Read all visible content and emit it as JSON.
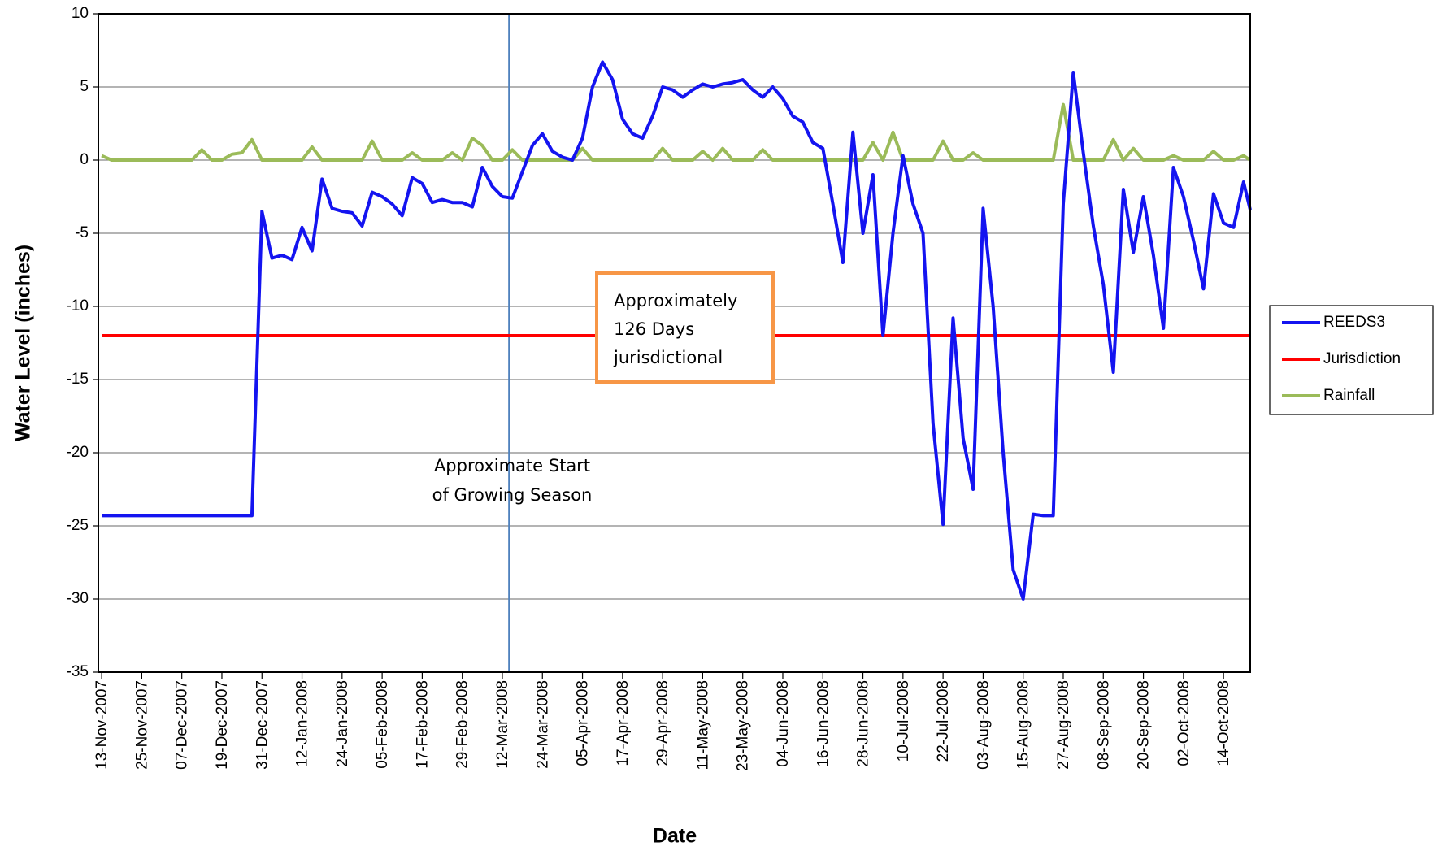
{
  "chart_data": {
    "type": "line",
    "x_label": "Date",
    "y_label": "Water Level (inches)",
    "xlim": [
      "12-Nov-2007",
      "22-Oct-2008"
    ],
    "xticks": [
      "13-Nov-2007",
      "25-Nov-2007",
      "07-Dec-2007",
      "19-Dec-2007",
      "31-Dec-2007",
      "12-Jan-2008",
      "24-Jan-2008",
      "05-Feb-2008",
      "17-Feb-2008",
      "29-Feb-2008",
      "12-Mar-2008",
      "24-Mar-2008",
      "05-Apr-2008",
      "17-Apr-2008",
      "29-Apr-2008",
      "11-May-2008",
      "23-May-2008",
      "04-Jun-2008",
      "16-Jun-2008",
      "28-Jun-2008",
      "10-Jul-2008",
      "22-Jul-2008",
      "03-Aug-2008",
      "15-Aug-2008",
      "27-Aug-2008",
      "08-Sep-2008",
      "20-Sep-2008",
      "02-Oct-2008",
      "14-Oct-2008"
    ],
    "ylim": [
      -35,
      10
    ],
    "yticks": [
      -35,
      -30,
      -25,
      -20,
      -15,
      -10,
      -5,
      0,
      5,
      10
    ],
    "grid": true,
    "legend": "right",
    "x": [
      "13-Nov-2007",
      "16-Nov-2007",
      "19-Nov-2007",
      "22-Nov-2007",
      "25-Nov-2007",
      "28-Nov-2007",
      "01-Dec-2007",
      "04-Dec-2007",
      "07-Dec-2007",
      "10-Dec-2007",
      "13-Dec-2007",
      "16-Dec-2007",
      "19-Dec-2007",
      "22-Dec-2007",
      "25-Dec-2007",
      "28-Dec-2007",
      "31-Dec-2007",
      "03-Jan-2008",
      "06-Jan-2008",
      "09-Jan-2008",
      "12-Jan-2008",
      "15-Jan-2008",
      "18-Jan-2008",
      "21-Jan-2008",
      "24-Jan-2008",
      "27-Jan-2008",
      "30-Jan-2008",
      "02-Feb-2008",
      "05-Feb-2008",
      "08-Feb-2008",
      "11-Feb-2008",
      "14-Feb-2008",
      "17-Feb-2008",
      "20-Feb-2008",
      "23-Feb-2008",
      "26-Feb-2008",
      "29-Feb-2008",
      "03-Mar-2008",
      "06-Mar-2008",
      "09-Mar-2008",
      "12-Mar-2008",
      "15-Mar-2008",
      "18-Mar-2008",
      "21-Mar-2008",
      "24-Mar-2008",
      "27-Mar-2008",
      "30-Mar-2008",
      "02-Apr-2008",
      "05-Apr-2008",
      "08-Apr-2008",
      "11-Apr-2008",
      "14-Apr-2008",
      "17-Apr-2008",
      "20-Apr-2008",
      "23-Apr-2008",
      "26-Apr-2008",
      "29-Apr-2008",
      "02-May-2008",
      "05-May-2008",
      "08-May-2008",
      "11-May-2008",
      "14-May-2008",
      "17-May-2008",
      "20-May-2008",
      "23-May-2008",
      "26-May-2008",
      "29-May-2008",
      "01-Jun-2008",
      "04-Jun-2008",
      "07-Jun-2008",
      "10-Jun-2008",
      "13-Jun-2008",
      "16-Jun-2008",
      "19-Jun-2008",
      "22-Jun-2008",
      "25-Jun-2008",
      "28-Jun-2008",
      "01-Jul-2008",
      "04-Jul-2008",
      "07-Jul-2008",
      "10-Jul-2008",
      "13-Jul-2008",
      "16-Jul-2008",
      "19-Jul-2008",
      "22-Jul-2008",
      "25-Jul-2008",
      "28-Jul-2008",
      "31-Jul-2008",
      "03-Aug-2008",
      "06-Aug-2008",
      "09-Aug-2008",
      "12-Aug-2008",
      "15-Aug-2008",
      "18-Aug-2008",
      "21-Aug-2008",
      "24-Aug-2008",
      "27-Aug-2008",
      "30-Aug-2008",
      "02-Sep-2008",
      "05-Sep-2008",
      "08-Sep-2008",
      "11-Sep-2008",
      "14-Sep-2008",
      "17-Sep-2008",
      "20-Sep-2008",
      "23-Sep-2008",
      "26-Sep-2008",
      "29-Sep-2008",
      "02-Oct-2008",
      "05-Oct-2008",
      "08-Oct-2008",
      "11-Oct-2008",
      "14-Oct-2008",
      "17-Oct-2008",
      "20-Oct-2008",
      "22-Oct-2008"
    ],
    "series": [
      {
        "name": "REEDS3",
        "color": "#1414f0",
        "values": [
          -24.3,
          -24.3,
          -24.3,
          -24.3,
          -24.3,
          -24.3,
          -24.3,
          -24.3,
          -24.3,
          -24.3,
          -24.3,
          -24.3,
          -24.3,
          -24.3,
          -24.3,
          -24.3,
          -3.5,
          -6.7,
          -6.5,
          -6.8,
          -4.6,
          -6.2,
          -1.3,
          -3.3,
          -3.5,
          -3.6,
          -4.5,
          -2.2,
          -2.5,
          -3.0,
          -3.8,
          -1.2,
          -1.6,
          -2.9,
          -2.7,
          -2.9,
          -2.9,
          -3.2,
          -0.5,
          -1.8,
          -2.5,
          -2.6,
          -0.8,
          1.0,
          1.8,
          0.6,
          0.2,
          0.0,
          1.5,
          5.0,
          6.7,
          5.5,
          2.8,
          1.8,
          1.5,
          3.0,
          5.0,
          4.8,
          4.3,
          4.8,
          5.2,
          5.0,
          5.2,
          5.3,
          5.5,
          4.8,
          4.3,
          5.0,
          4.2,
          3.0,
          2.6,
          1.2,
          0.8,
          -3.0,
          -7.0,
          1.9,
          -5.0,
          -1.0,
          -12.0,
          -5.0,
          0.3,
          -3.0,
          -5.0,
          -18.0,
          -24.9,
          -10.8,
          -19.0,
          -22.5,
          -3.3,
          -10.0,
          -20.0,
          -28.0,
          -30.0,
          -24.2,
          -24.3,
          -24.3,
          -3.0,
          6.0,
          0.5,
          -4.5,
          -8.5,
          -14.5,
          -2.0,
          -6.3,
          -2.5,
          -6.5,
          -11.5,
          -0.5,
          -2.5,
          -5.5,
          -8.8,
          -2.3,
          -4.3,
          -4.6,
          -1.5,
          -3.4
        ]
      },
      {
        "name": "Jurisdiction",
        "color": "#ff0000",
        "values": [
          -12,
          -12,
          -12,
          -12,
          -12,
          -12,
          -12,
          -12,
          -12,
          -12,
          -12,
          -12,
          -12,
          -12,
          -12,
          -12,
          -12,
          -12,
          -12,
          -12,
          -12,
          -12,
          -12,
          -12,
          -12,
          -12,
          -12,
          -12,
          -12,
          -12,
          -12,
          -12,
          -12,
          -12,
          -12,
          -12,
          -12,
          -12,
          -12,
          -12,
          -12,
          -12,
          -12,
          -12,
          -12,
          -12,
          -12,
          -12,
          -12,
          -12,
          -12,
          -12,
          -12,
          -12,
          -12,
          -12,
          -12,
          -12,
          -12,
          -12,
          -12,
          -12,
          -12,
          -12,
          -12,
          -12,
          -12,
          -12,
          -12,
          -12,
          -12,
          -12,
          -12,
          -12,
          -12,
          -12,
          -12,
          -12,
          -12,
          -12,
          -12,
          -12,
          -12,
          -12,
          -12,
          -12,
          -12,
          -12,
          -12,
          -12,
          -12,
          -12,
          -12,
          -12,
          -12,
          -12,
          -12,
          -12,
          -12,
          -12,
          -12,
          -12,
          -12,
          -12,
          -12,
          -12,
          -12,
          -12,
          -12,
          -12,
          -12,
          -12,
          -12,
          -12,
          -12,
          -12
        ]
      },
      {
        "name": "Rainfall",
        "color": "#9bbb59",
        "values": [
          0.3,
          0,
          0,
          0,
          0,
          0,
          0,
          0,
          0,
          0,
          0.7,
          0,
          0,
          0.4,
          0.5,
          1.4,
          0,
          0,
          0,
          0,
          0,
          0.9,
          0,
          0,
          0,
          0,
          0,
          1.3,
          0,
          0,
          0,
          0.5,
          0,
          0,
          0,
          0.5,
          0,
          1.5,
          1.0,
          0,
          0,
          0.7,
          0,
          0,
          0,
          0,
          0,
          0,
          0.8,
          0,
          0,
          0,
          0,
          0,
          0,
          0,
          0.8,
          0,
          0,
          0,
          0.6,
          0,
          0.8,
          0,
          0,
          0,
          0.7,
          0,
          0,
          0,
          0,
          0,
          0,
          0,
          0,
          0,
          0,
          1.2,
          0,
          1.9,
          0,
          0,
          0,
          0,
          1.3,
          0,
          0,
          0.5,
          0,
          0,
          0,
          0,
          0,
          0,
          0,
          0,
          3.8,
          0,
          0,
          0,
          0,
          1.4,
          0,
          0.8,
          0,
          0,
          0,
          0.3,
          0,
          0,
          0,
          0.6,
          0,
          0,
          0.3,
          0
        ]
      }
    ],
    "vline": {
      "x": "14-Mar-2008",
      "color": "#4f81bd"
    },
    "annotations": [
      {
        "lines": [
          "Approximate Start",
          "of Growing Season"
        ]
      },
      {
        "lines": [
          "Approximately",
          "126 Days",
          "jurisdictional"
        ],
        "border": "#f79646"
      }
    ]
  }
}
